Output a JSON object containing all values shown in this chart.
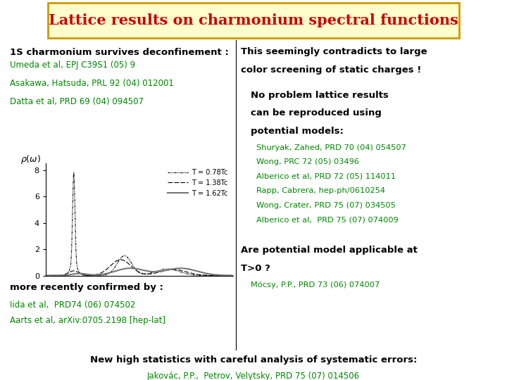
{
  "title": "Lattice results on charmonium spectral functions",
  "title_color": "#cc0000",
  "title_bg": "#ffffcc",
  "title_border": "#cc9900",
  "bg_color": "#ffffff",
  "left_heading": "1S charmonium survives deconfinement :",
  "left_refs": [
    "Umeda et al, EPJ C39S1 (05) 9",
    "Asakawa, Hatsuda, PRL 92 (04) 012001",
    "Datta et al, PRD 69 (04) 094507"
  ],
  "more_recently": "more recently confirmed by :",
  "more_refs": [
    "Iida et al,  PRD74 (06) 074502",
    "Aarts et al, arXiv:0705.2198 [hep-lat]"
  ],
  "right_heading1_line1": "This seemingly contradicts to large",
  "right_heading1_line2": "color screening of static charges !",
  "right_heading2_line1": "No problem lattice results",
  "right_heading2_line2": "can be reproduced using",
  "right_heading2_line3": "potential models:",
  "right_refs": [
    "Shuryak, Zahed, PRD 70 (04) 054507",
    "Wong, PRC 72 (05) 03496",
    "Alberico et al, PRD 72 (05) 114011",
    "Rapp, Cabrera, hep-ph/0610254",
    "Wong, Crater, PRD 75 (07) 034505",
    "Alberico et al,  PRD 75 (07) 074009"
  ],
  "right_heading3_line1": "Are potential model applicable at",
  "right_heading3_line2": "T>0 ?",
  "right_ref3": "Mócsy, P.P., PRD 73 (06) 074007",
  "bottom_heading": "New high statistics with careful analysis of systematic errors:",
  "bottom_ref": "Jakovác, P.P.,  Petrov, Velytsky, PRD 75 (07) 014506",
  "green_color": "#008800",
  "black_color": "#000000",
  "plot_label1": "T = 0.78Tc",
  "plot_label2": "T = 1.38Tc",
  "plot_label3": "T = 1.62Tc"
}
